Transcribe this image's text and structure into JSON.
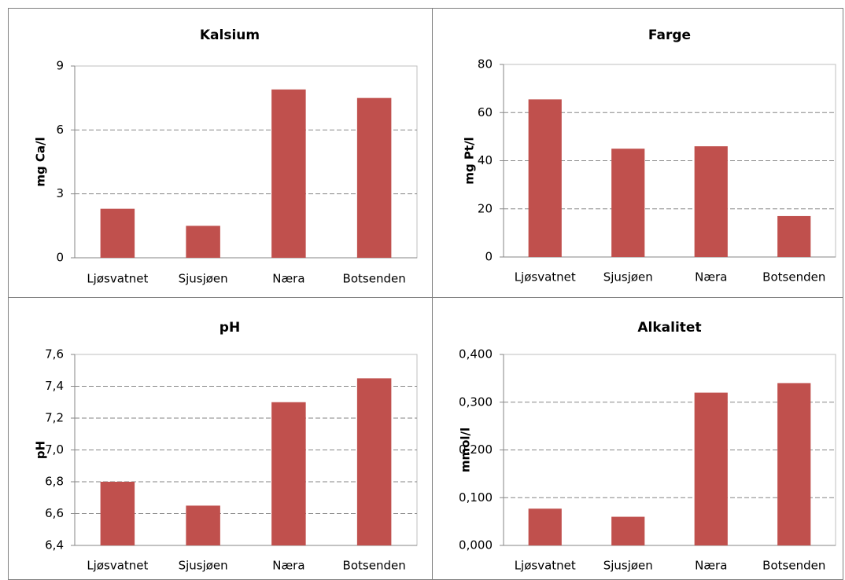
{
  "chart_data": [
    {
      "type": "bar",
      "title": "Kalsium",
      "y_label": "mg Ca/l",
      "categories": [
        "Ljøsvatnet",
        "Sjusjøen",
        "Næra",
        "Botsenden"
      ],
      "values": [
        2.3,
        1.5,
        7.9,
        7.5
      ],
      "color": "#c0504d",
      "ylim": [
        0,
        9
      ],
      "yticks": [
        0,
        3,
        6,
        9
      ],
      "grid": true
    },
    {
      "type": "bar",
      "title": "Farge",
      "y_label": "mg Pt/l",
      "categories": [
        "Ljøsvatnet",
        "Sjusjøen",
        "Næra",
        "Botsenden"
      ],
      "values": [
        65.5,
        45,
        46,
        17
      ],
      "color": "#c0504d",
      "ylim": [
        0,
        80
      ],
      "yticks": [
        0,
        20,
        40,
        60,
        80
      ],
      "grid": true
    },
    {
      "type": "bar",
      "title": "pH",
      "y_label": "pH",
      "categories": [
        "Ljøsvatnet",
        "Sjusjøen",
        "Næra",
        "Botsenden"
      ],
      "values": [
        6.8,
        6.65,
        7.3,
        7.45
      ],
      "color": "#c0504d",
      "ylim": [
        6.4,
        7.6
      ],
      "yticks": [
        {
          "value": 6.4,
          "label": "6,4"
        },
        {
          "value": 6.6,
          "label": "6,6"
        },
        {
          "value": 6.8,
          "label": "6,8"
        },
        {
          "value": 7.0,
          "label": "7,0"
        },
        {
          "value": 7.2,
          "label": "7,2"
        },
        {
          "value": 7.4,
          "label": "7,4"
        },
        {
          "value": 7.6,
          "label": "7,6"
        }
      ],
      "grid": true
    },
    {
      "type": "bar",
      "title": "Alkalitet",
      "y_label": "mmol/l",
      "categories": [
        "Ljøsvatnet",
        "Sjusjøen",
        "Næra",
        "Botsenden"
      ],
      "values": [
        0.077,
        0.06,
        0.32,
        0.34
      ],
      "color": "#c0504d",
      "ylim": [
        0,
        0.4
      ],
      "yticks": [
        {
          "value": 0,
          "label": "0,000"
        },
        {
          "value": 0.1,
          "label": "0,100"
        },
        {
          "value": 0.2,
          "label": "0,200"
        },
        {
          "value": 0.3,
          "label": "0,300"
        },
        {
          "value": 0.4,
          "label": "0,400"
        }
      ],
      "grid": true
    }
  ]
}
